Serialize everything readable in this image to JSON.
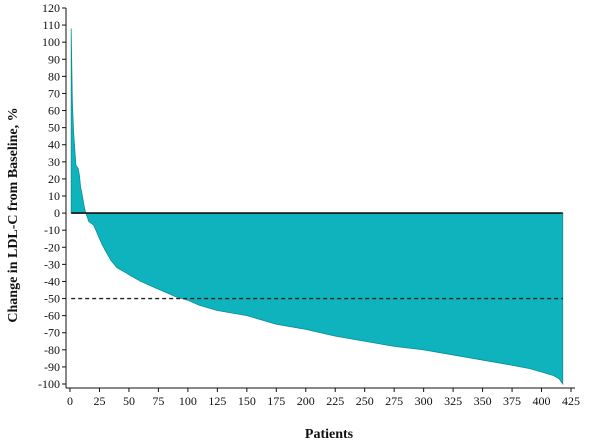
{
  "chart_data": {
    "type": "area",
    "title": "",
    "xlabel": "Patients",
    "ylabel": "Change in LDL-C from Baseline, %",
    "xlim": [
      0,
      425
    ],
    "ylim": [
      -100,
      120
    ],
    "x_ticks": [
      0,
      25,
      50,
      75,
      100,
      125,
      150,
      175,
      200,
      225,
      250,
      275,
      300,
      325,
      350,
      375,
      400,
      425
    ],
    "y_ticks": [
      120,
      110,
      100,
      90,
      80,
      70,
      60,
      50,
      40,
      30,
      20,
      10,
      0,
      -10,
      -20,
      -30,
      -40,
      -50,
      -60,
      -70,
      -80,
      -90,
      -100
    ],
    "fill_color": "#0fb3bd",
    "reference_lines": [
      {
        "y": 0,
        "style": "solid"
      },
      {
        "y": -50,
        "style": "dashed"
      }
    ],
    "series": [
      {
        "x": [
          1,
          2,
          3,
          4,
          5,
          6,
          7,
          8,
          9,
          10,
          11,
          12,
          13,
          14,
          15,
          16,
          18,
          20,
          22,
          25,
          27,
          30,
          35,
          40,
          45,
          50,
          60,
          70,
          80,
          90,
          100,
          110,
          125,
          150,
          175,
          200,
          225,
          250,
          275,
          300,
          325,
          350,
          375,
          390,
          400,
          410,
          415,
          418
        ],
        "values": [
          108,
          65,
          48,
          38,
          28,
          27,
          26,
          22,
          15,
          12,
          8,
          4,
          1,
          -1,
          -3,
          -5,
          -6,
          -7,
          -10,
          -15,
          -18,
          -22,
          -28,
          -32,
          -34,
          -36,
          -40,
          -43,
          -46,
          -49,
          -51,
          -54,
          -57,
          -60,
          -65,
          -68,
          -72,
          -75,
          -78,
          -80,
          -83,
          -86,
          -89,
          -91,
          -93,
          -95,
          -97,
          -100
        ]
      }
    ]
  }
}
